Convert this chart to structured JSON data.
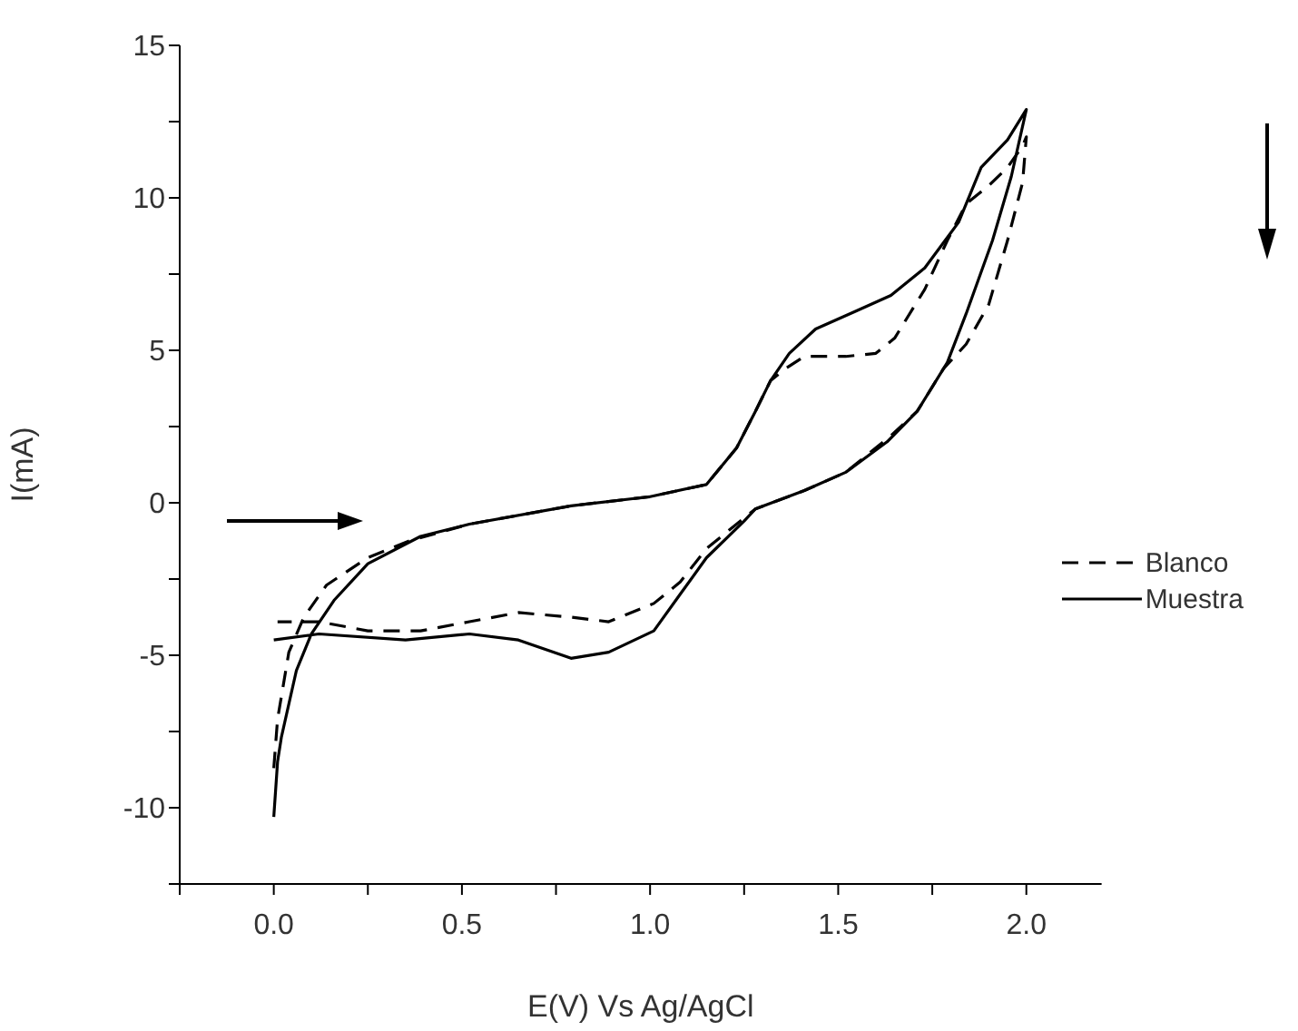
{
  "chart_data": {
    "type": "line",
    "xlabel": "E(V) Vs Ag/AgCl",
    "ylabel": "I(mA)",
    "xlim": [
      -0.25,
      2.2
    ],
    "ylim": [
      -12.5,
      15
    ],
    "xticks": [
      {
        "value": -0.25,
        "label": null
      },
      {
        "value": 0,
        "label": "0.0"
      },
      {
        "value": 0.25,
        "label": null
      },
      {
        "value": 0.5,
        "label": "0.5"
      },
      {
        "value": 0.75,
        "label": null
      },
      {
        "value": 1,
        "label": "1.0"
      },
      {
        "value": 1.25,
        "label": null
      },
      {
        "value": 1.5,
        "label": "1.5"
      },
      {
        "value": 1.75,
        "label": null
      },
      {
        "value": 2,
        "label": "2.0"
      }
    ],
    "yticks": [
      {
        "value": -12.5,
        "label": null
      },
      -10,
      {
        "value": -7.5,
        "label": null
      },
      -5,
      {
        "value": -2.5,
        "label": null
      },
      0,
      {
        "value": 2.5,
        "label": null
      },
      5,
      {
        "value": 7.5,
        "label": null
      },
      10,
      {
        "value": 12.5,
        "label": null
      },
      15
    ],
    "grid": false,
    "legend": "right",
    "marker": "none",
    "series": [
      {
        "name": "Blanco",
        "color": "#000000",
        "line_style": "dashed",
        "x": [
          0.0,
          0.01,
          0.04,
          0.08,
          0.14,
          0.25,
          0.36,
          0.52,
          0.79,
          1.0,
          1.15,
          1.23,
          1.28,
          1.32,
          1.36,
          1.41,
          1.52,
          1.6,
          1.65,
          1.73,
          1.79,
          1.84,
          1.9,
          1.95,
          1.99,
          2.0,
          1.99,
          1.95,
          1.9,
          1.84,
          1.78,
          1.71,
          1.64,
          1.52,
          1.41,
          1.28,
          1.15,
          1.08,
          1.01,
          0.89,
          0.79,
          0.65,
          0.52,
          0.39,
          0.25,
          0.12,
          0.01
        ],
        "values": [
          -8.7,
          -7.1,
          -4.9,
          -3.75,
          -2.7,
          -1.8,
          -1.25,
          -0.7,
          -0.1,
          0.2,
          0.6,
          1.8,
          3.0,
          4.0,
          4.4,
          4.8,
          4.8,
          4.9,
          5.4,
          7.0,
          8.6,
          9.8,
          10.4,
          11.0,
          11.7,
          12.0,
          10.5,
          8.6,
          6.5,
          5.2,
          4.4,
          3.0,
          2.2,
          1.0,
          0.4,
          -0.2,
          -1.5,
          -2.6,
          -3.3,
          -3.9,
          -3.75,
          -3.6,
          -3.9,
          -4.2,
          -4.2,
          -3.9,
          -3.9
        ]
      },
      {
        "name": "Muestra",
        "color": "#000000",
        "line_style": "solid",
        "x": [
          0.0,
          0.01,
          0.02,
          0.06,
          0.1,
          0.16,
          0.25,
          0.39,
          0.52,
          0.79,
          1.0,
          1.15,
          1.23,
          1.28,
          1.32,
          1.37,
          1.44,
          1.55,
          1.64,
          1.73,
          1.82,
          1.88,
          1.95,
          2.0,
          1.96,
          1.91,
          1.84,
          1.79,
          1.71,
          1.63,
          1.52,
          1.41,
          1.28,
          1.25,
          1.15,
          1.08,
          1.01,
          0.89,
          0.79,
          0.65,
          0.52,
          0.35,
          0.12,
          0.0
        ],
        "values": [
          -10.3,
          -8.5,
          -7.7,
          -5.5,
          -4.3,
          -3.2,
          -2.0,
          -1.1,
          -0.7,
          -0.1,
          0.2,
          0.6,
          1.8,
          3.0,
          4.0,
          4.9,
          5.7,
          6.3,
          6.8,
          7.7,
          9.2,
          11.0,
          11.9,
          12.9,
          10.7,
          8.6,
          6.2,
          4.6,
          3.0,
          2.0,
          1.0,
          0.4,
          -0.2,
          -0.6,
          -1.8,
          -3.0,
          -4.2,
          -4.9,
          -5.1,
          -4.5,
          -4.3,
          -4.5,
          -4.3,
          -4.5
        ]
      }
    ]
  }
}
